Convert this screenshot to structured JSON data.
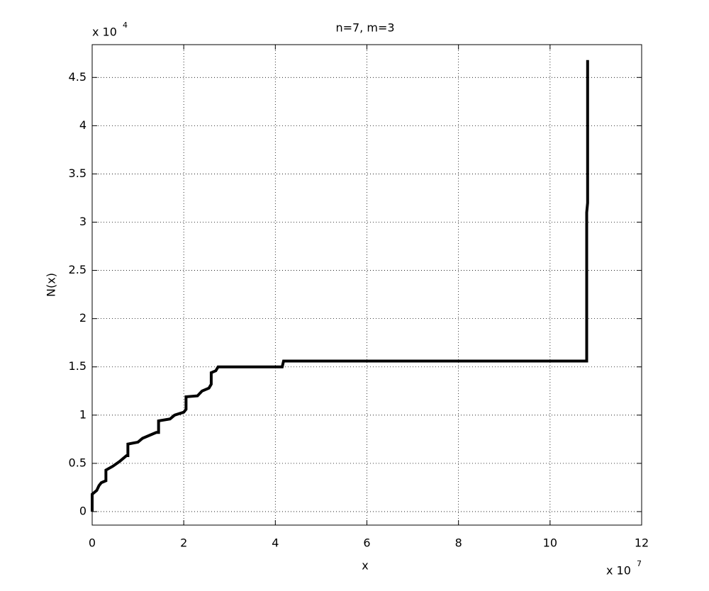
{
  "chart_data": {
    "type": "line",
    "title": "n=7, m=3",
    "x_label": "x",
    "y_label": "N(x)",
    "x_multiplier": {
      "base": "x 10",
      "exponent": "7"
    },
    "y_multiplier": {
      "base": "x 10",
      "exponent": "4"
    },
    "x": [
      0,
      0,
      0.1,
      0.15,
      0.2,
      0.3,
      0.3,
      0.45,
      0.6,
      0.7,
      0.75,
      0.78,
      0.78,
      1.0,
      1.1,
      1.3,
      1.4,
      1.45,
      1.45,
      1.7,
      1.8,
      2.0,
      2.05,
      2.05,
      2.3,
      2.4,
      2.55,
      2.6,
      2.6,
      2.7,
      2.75,
      4.15,
      4.18,
      10.8,
      10.8,
      10.82,
      10.82
    ],
    "series": [
      {
        "color": "#000000",
        "values": [
          0,
          0.18,
          0.22,
          0.27,
          0.3,
          0.32,
          0.43,
          0.47,
          0.52,
          0.56,
          0.58,
          0.58,
          0.7,
          0.72,
          0.76,
          0.8,
          0.82,
          0.82,
          0.94,
          0.96,
          1.0,
          1.03,
          1.06,
          1.19,
          1.2,
          1.25,
          1.28,
          1.32,
          1.44,
          1.46,
          1.5,
          1.5,
          1.56,
          1.56,
          3.1,
          3.2,
          4.68
        ]
      }
    ],
    "xlim": [
      0,
      12
    ],
    "xticks": [
      0,
      2,
      4,
      6,
      8,
      10,
      12
    ],
    "ylim": [
      -0.14,
      4.84
    ],
    "yticks": [
      0,
      0.5,
      1,
      1.5,
      2,
      2.5,
      3,
      3.5,
      4,
      4.5
    ],
    "grid": true
  }
}
